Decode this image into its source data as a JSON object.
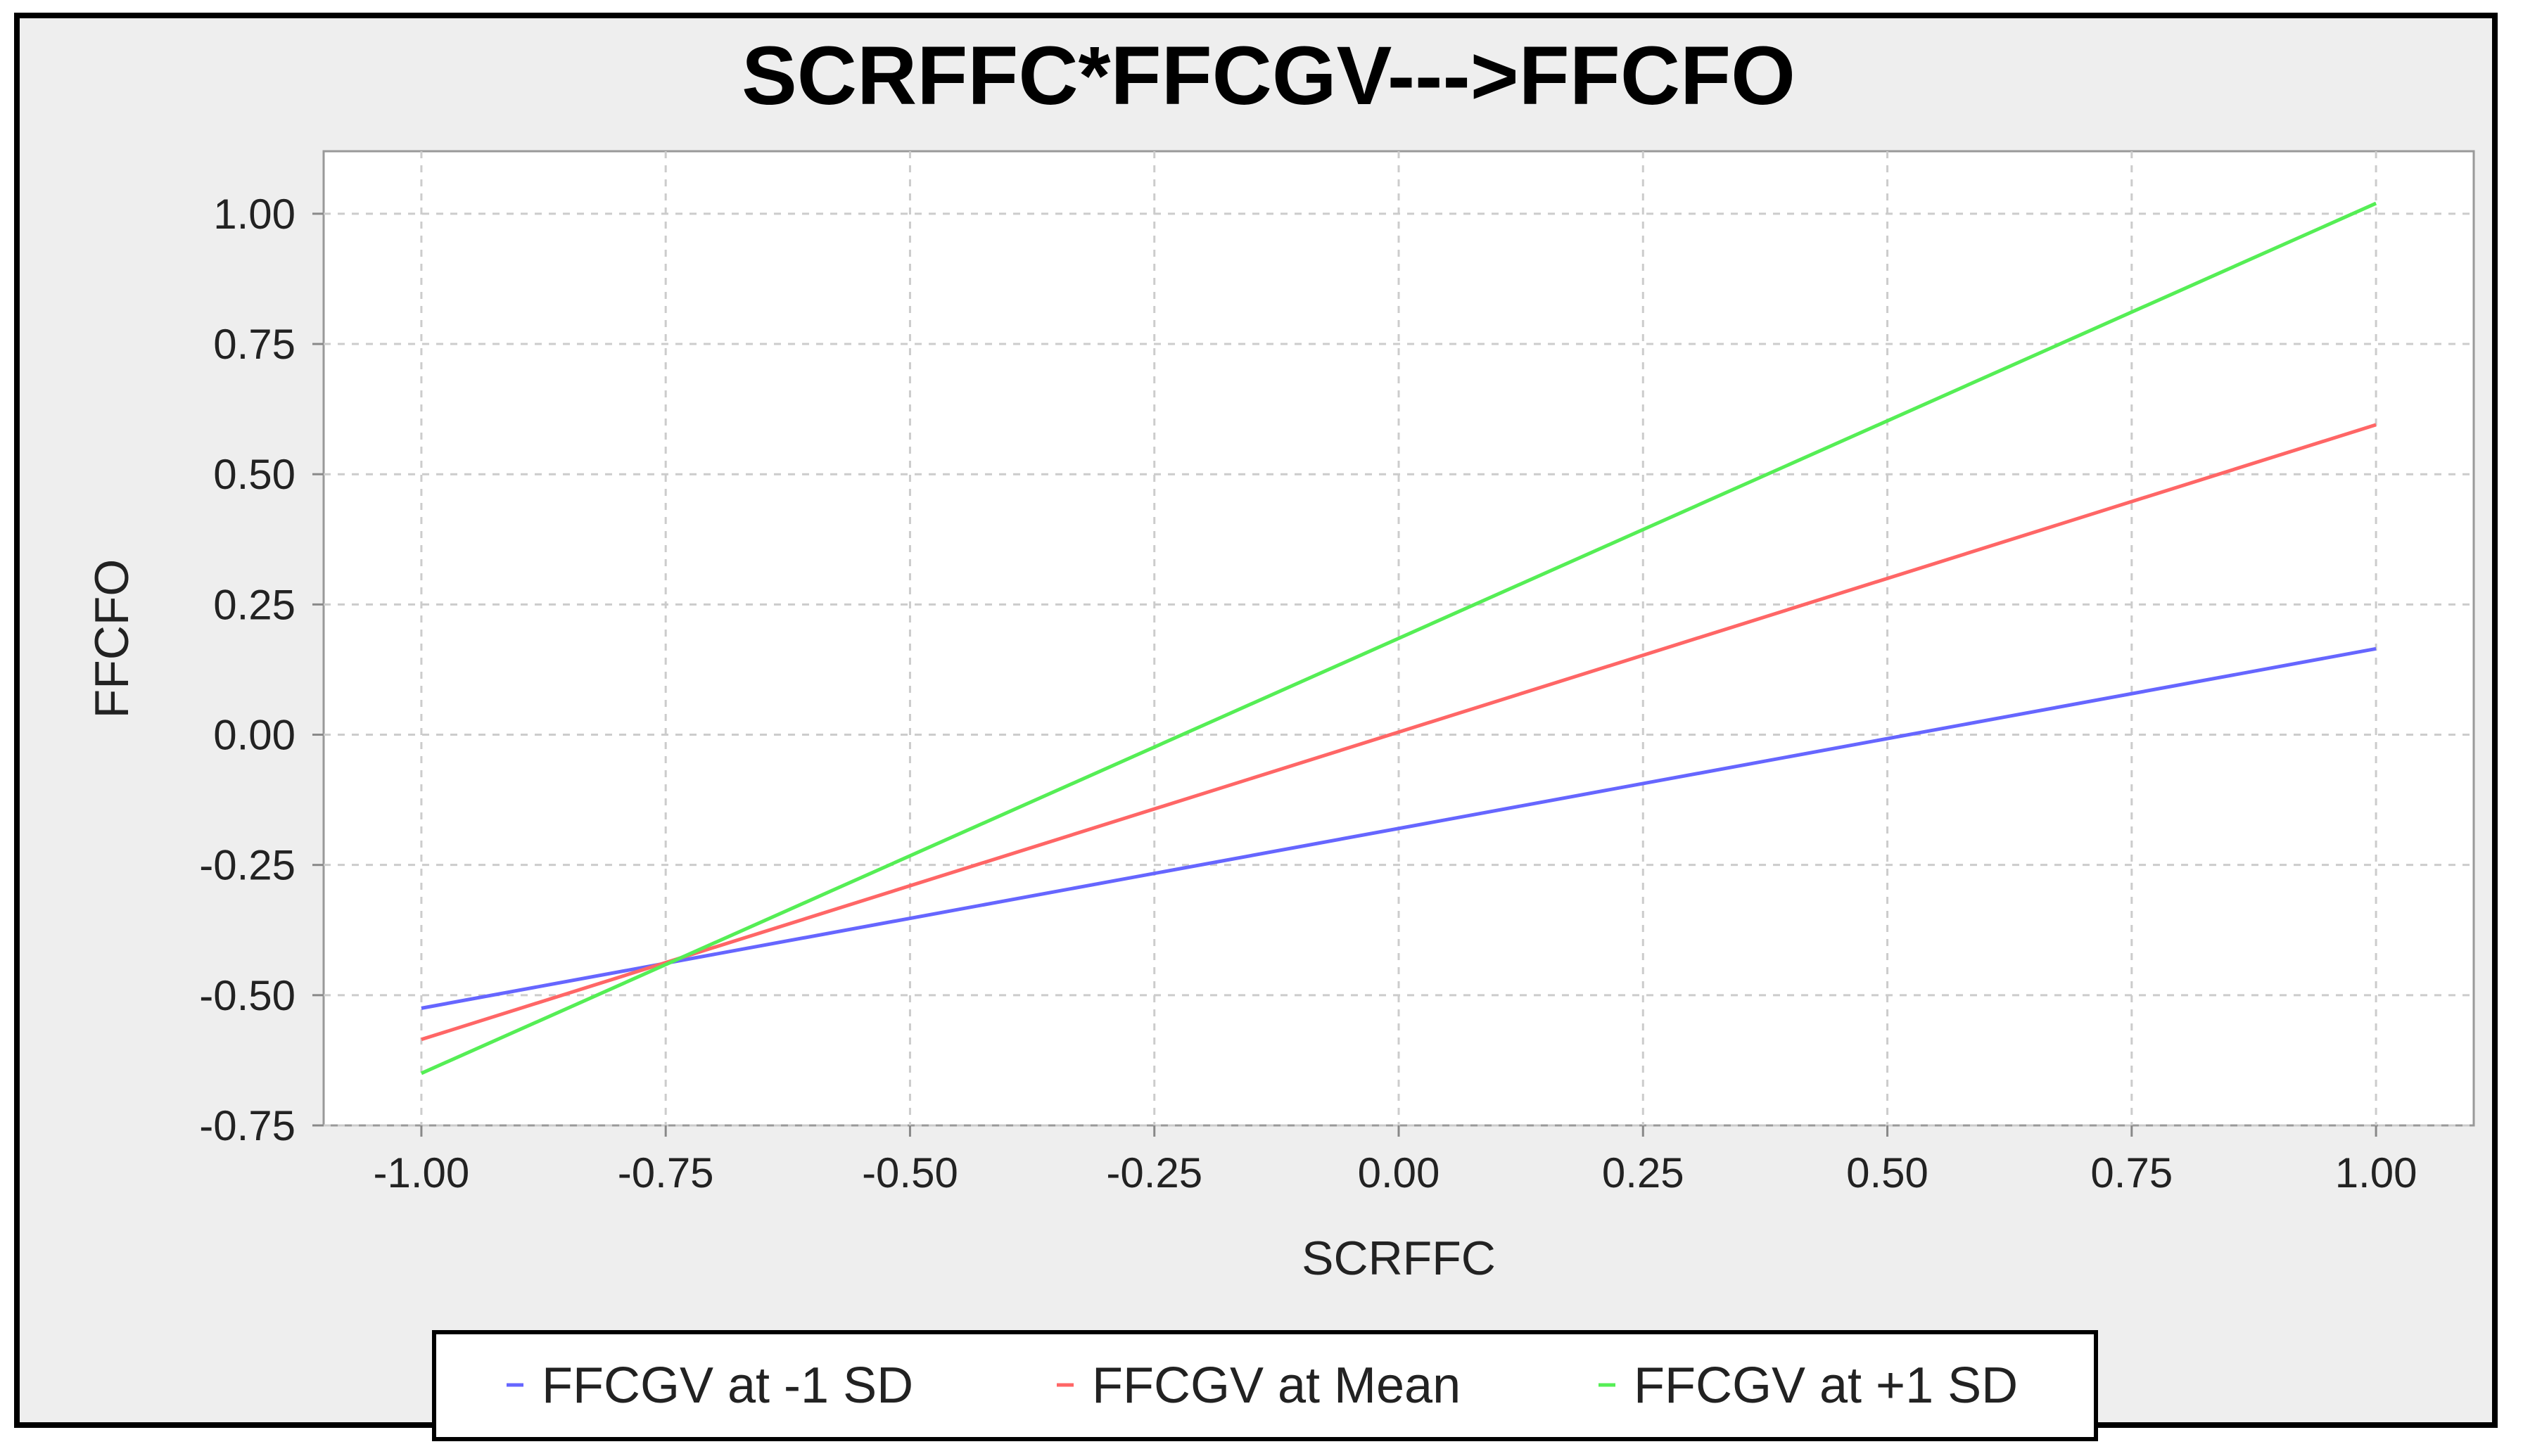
{
  "chart_data": {
    "type": "line",
    "title": "SCRFFC*FFCGV--->FFCFO",
    "xlabel": "SCRFFC",
    "ylabel": "FFCFO",
    "xlim": [
      -1.1,
      1.1
    ],
    "ylim": [
      -0.75,
      1.12
    ],
    "xticks": [
      "-1.00",
      "-0.75",
      "-0.50",
      "-0.25",
      "0.00",
      "0.25",
      "0.50",
      "0.75",
      "1.00"
    ],
    "yticks": [
      "-0.75",
      "-0.50",
      "-0.25",
      "0.00",
      "0.25",
      "0.50",
      "0.75",
      "1.00"
    ],
    "grid": true,
    "legend_position": "bottom",
    "series": [
      {
        "name": "FFCGV at -1 SD",
        "color": "#6666ff",
        "x": [
          -1.0,
          1.0
        ],
        "y": [
          -0.525,
          0.165
        ]
      },
      {
        "name": "FFCGV at Mean",
        "color": "#ff6666",
        "x": [
          -1.0,
          1.0
        ],
        "y": [
          -0.585,
          0.595
        ]
      },
      {
        "name": "FFCGV at +1 SD",
        "color": "#55ee55",
        "x": [
          -1.0,
          1.0
        ],
        "y": [
          -0.65,
          1.02
        ]
      }
    ]
  }
}
